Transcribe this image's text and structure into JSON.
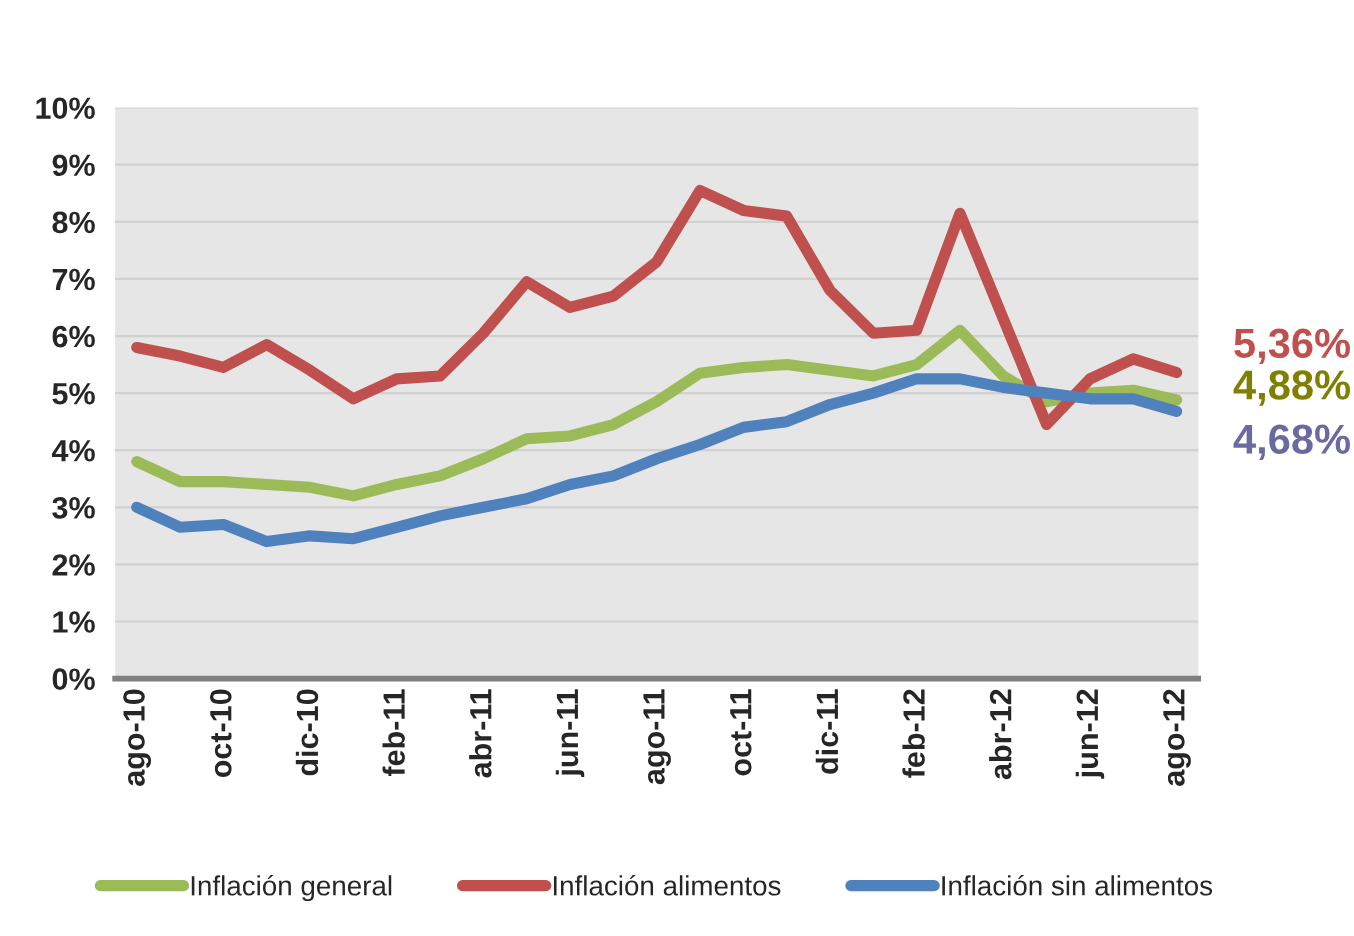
{
  "chart_data": {
    "type": "line",
    "categories": [
      "ago-10",
      null,
      "oct-10",
      null,
      "dic-10",
      null,
      "feb-11",
      null,
      "abr-11",
      null,
      "jun-11",
      null,
      "ago-11",
      null,
      "oct-11",
      null,
      "dic-11",
      null,
      "feb-12",
      null,
      "abr-12",
      null,
      "jun-12",
      null,
      "ago-12"
    ],
    "series": [
      {
        "name": "Inflación general",
        "color": "#9bbb59",
        "values": [
          3.8,
          3.45,
          3.45,
          3.4,
          3.35,
          3.2,
          3.4,
          3.55,
          3.85,
          4.2,
          4.25,
          4.45,
          4.85,
          5.35,
          5.45,
          5.5,
          5.4,
          5.3,
          5.5,
          6.1,
          5.3,
          4.85,
          5.0,
          5.05,
          4.88
        ]
      },
      {
        "name": "Inflación alimentos",
        "color": "#c0504d",
        "values": [
          5.8,
          5.65,
          5.45,
          5.85,
          5.4,
          4.9,
          5.25,
          5.3,
          6.05,
          6.95,
          6.5,
          6.7,
          7.3,
          8.55,
          8.2,
          8.1,
          6.8,
          6.05,
          6.1,
          8.15,
          6.3,
          4.45,
          5.25,
          5.6,
          5.36
        ]
      },
      {
        "name": "Inflación sin alimentos",
        "color": "#4f81bd",
        "values": [
          3.0,
          2.65,
          2.7,
          2.4,
          2.5,
          2.45,
          2.65,
          2.85,
          3.0,
          3.15,
          3.4,
          3.55,
          3.85,
          4.1,
          4.4,
          4.5,
          4.8,
          5.0,
          5.25,
          5.25,
          5.1,
          5.0,
          4.9,
          4.9,
          4.68
        ]
      }
    ],
    "ylim": [
      0,
      10
    ],
    "yticks": [
      {
        "value": 0,
        "label": "0%"
      },
      {
        "value": 1,
        "label": "1%"
      },
      {
        "value": 2,
        "label": "2%"
      },
      {
        "value": 3,
        "label": "3%"
      },
      {
        "value": 4,
        "label": "4%"
      },
      {
        "value": 5,
        "label": "5%"
      },
      {
        "value": 6,
        "label": "6%"
      },
      {
        "value": 7,
        "label": "7%"
      },
      {
        "value": 8,
        "label": "8%"
      },
      {
        "value": 9,
        "label": "9%"
      },
      {
        "value": 10,
        "label": "10%"
      }
    ],
    "grid": "y",
    "legend": "bottom",
    "marker": "none",
    "line_style": "solid",
    "annotations": [
      {
        "text": "5,36%",
        "x": "ago-12",
        "y": 5.36
      },
      {
        "text": "4,88%",
        "x": "ago-12",
        "y": 4.88
      },
      {
        "text": "4,68%",
        "x": "ago-12",
        "y": 4.68
      }
    ]
  }
}
